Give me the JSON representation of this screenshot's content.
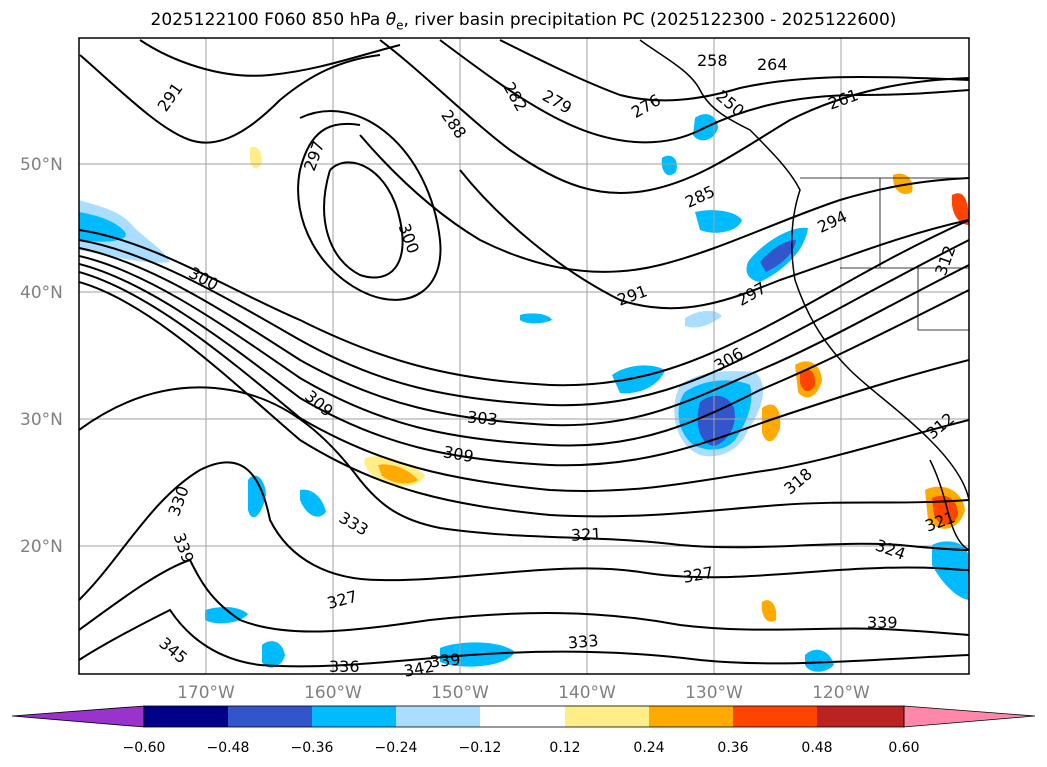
{
  "title": {
    "prefix": "2025122100 F060 850 hPa ",
    "symbol": "θ",
    "subscript": "e",
    "suffix": ", river basin precipitation PC (2025122300 - 2025122600)"
  },
  "map": {
    "lat_labels": [
      "50°N",
      "40°N",
      "30°N",
      "20°N"
    ],
    "lon_labels": [
      "170°W",
      "160°W",
      "150°W",
      "140°W",
      "130°W",
      "120°W"
    ],
    "gridlines": true,
    "contour_labels": [
      "291",
      "297",
      "300",
      "288",
      "282",
      "279",
      "276",
      "258",
      "264",
      "261",
      "250",
      "285",
      "294",
      "312",
      "300",
      "291",
      "297",
      "306",
      "309",
      "303",
      "309",
      "318",
      "312",
      "330",
      "333",
      "339",
      "321",
      "327",
      "324",
      "321",
      "339",
      "345",
      "342",
      "336",
      "339",
      "333",
      "327"
    ]
  },
  "colorbar": {
    "colors": [
      "#9933cc",
      "#000088",
      "#3355cc",
      "#00bbff",
      "#aaddff",
      "#ffffff",
      "#ffee88",
      "#ffaa00",
      "#ff4400",
      "#bb2222",
      "#ff88aa"
    ],
    "ticks": [
      "−0.60",
      "−0.48",
      "−0.36",
      "−0.24",
      "−0.12",
      "0.12",
      "0.24",
      "0.36",
      "0.48",
      "0.60"
    ],
    "extend": "both"
  },
  "legend_colors": {
    "blue_shades": [
      "#aaddff",
      "#00bbff",
      "#3355cc"
    ],
    "orange_shades": [
      "#ffee88",
      "#ffaa00",
      "#ff4400"
    ]
  }
}
